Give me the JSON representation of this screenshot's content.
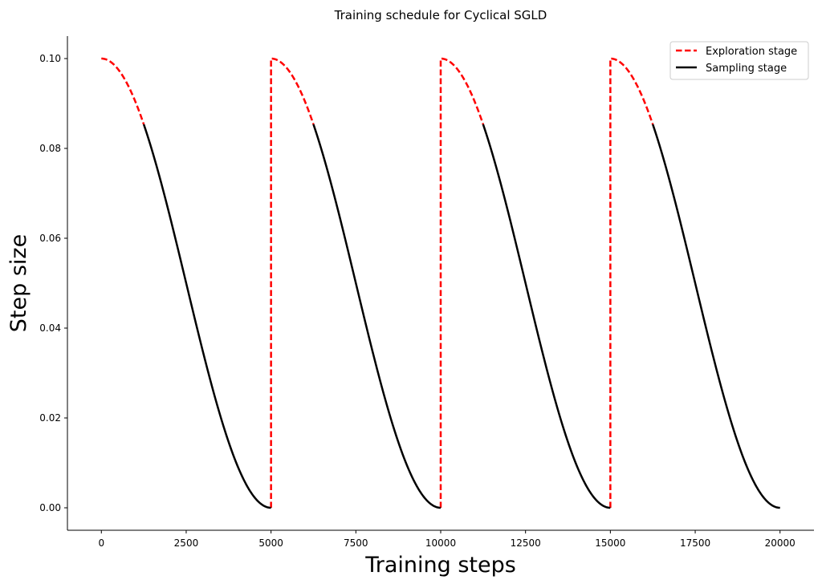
{
  "chart_data": {
    "type": "line",
    "title": "Training schedule for Cyclical SGLD",
    "xlabel": "Training steps",
    "ylabel": "Step size",
    "xlim": [
      -1000,
      21000
    ],
    "ylim": [
      -0.005,
      0.105
    ],
    "x_ticks": [
      0,
      2500,
      5000,
      7500,
      10000,
      12500,
      15000,
      17500,
      20000
    ],
    "x_tick_labels": [
      "0",
      "2500",
      "5000",
      "7500",
      "10000",
      "12500",
      "15000",
      "17500",
      "20000"
    ],
    "y_ticks": [
      0.0,
      0.02,
      0.04,
      0.06,
      0.08,
      0.1
    ],
    "y_tick_labels": [
      "0.00",
      "0.02",
      "0.04",
      "0.06",
      "0.08",
      "0.10"
    ],
    "grid": false,
    "legend_position": "top-right",
    "schedule": {
      "max_step_size": 0.1,
      "cycle_length": 5000,
      "num_cycles": 4,
      "exploration_fraction": 0.25
    },
    "series": [
      {
        "name": "Exploration stage",
        "style": "dashed",
        "color": "#ff0000",
        "segments": [
          {
            "x": [
              0,
              1250
            ],
            "y": [
              0.1,
              0.0854
            ]
          },
          {
            "x": [
              5000,
              5000,
              6250
            ],
            "y": [
              0.0,
              0.1,
              0.0854
            ]
          },
          {
            "x": [
              10000,
              10000,
              11250
            ],
            "y": [
              0.0,
              0.1,
              0.0854
            ]
          },
          {
            "x": [
              15000,
              15000,
              16250
            ],
            "y": [
              0.0,
              0.1,
              0.0854
            ]
          }
        ]
      },
      {
        "name": "Sampling stage",
        "style": "solid",
        "color": "#000000",
        "segments": [
          {
            "x": [
              1250,
              5000
            ],
            "y": [
              0.0854,
              0.0
            ]
          },
          {
            "x": [
              6250,
              10000
            ],
            "y": [
              0.0854,
              0.0
            ]
          },
          {
            "x": [
              11250,
              15000
            ],
            "y": [
              0.0854,
              0.0
            ]
          },
          {
            "x": [
              16250,
              20000
            ],
            "y": [
              0.0854,
              0.0
            ]
          }
        ]
      }
    ]
  }
}
